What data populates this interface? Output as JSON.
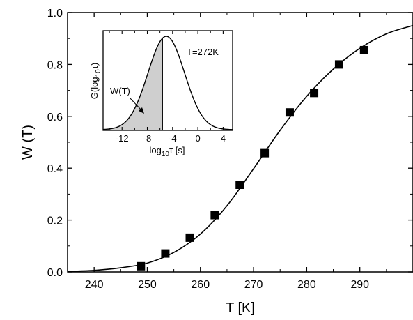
{
  "chart_data": [
    {
      "type": "scatter",
      "xlabel": "T [K]",
      "ylabel": "W (T)",
      "xlim": [
        235,
        300
      ],
      "ylim": [
        0,
        1.0
      ],
      "xticks": [
        240,
        250,
        260,
        270,
        280,
        290
      ],
      "yticks": [
        0.0,
        0.2,
        0.4,
        0.6,
        0.8,
        1.0
      ],
      "xtick_labels": [
        "240",
        "250",
        "260",
        "270",
        "280",
        "290"
      ],
      "ytick_labels": [
        "0.0",
        "0.2",
        "0.4",
        "0.6",
        "0.8",
        "1.0"
      ],
      "grid": false,
      "series": [
        {
          "marker": "square",
          "x": [
            248.8,
            253.4,
            258.0,
            262.7,
            267.4,
            272.1,
            276.8,
            281.4,
            286.1,
            290.8
          ],
          "y": [
            0.022,
            0.071,
            0.132,
            0.219,
            0.336,
            0.458,
            0.615,
            0.69,
            0.8,
            0.855
          ]
        },
        {
          "line": "fit-curve",
          "x": [
            235,
            240,
            245,
            250,
            255,
            260,
            265,
            270,
            275,
            280,
            285,
            290,
            295,
            300
          ],
          "y": [
            0.002,
            0.006,
            0.016,
            0.034,
            0.075,
            0.146,
            0.255,
            0.398,
            0.546,
            0.677,
            0.782,
            0.862,
            0.918,
            0.95
          ]
        }
      ]
    },
    {
      "type": "area",
      "inset": true,
      "annotation": "T=272K",
      "shaded_label": "W(T)",
      "xlabel_main": "log",
      "xlabel_sub": "10",
      "xlabel_rest": "τ [s]",
      "ylabel_main": "G(log",
      "ylabel_sub": "10",
      "ylabel_rest": "τ)",
      "xlim": [
        -15,
        5.5
      ],
      "xticks": [
        -12,
        -8,
        -4,
        0,
        4
      ],
      "xtick_labels": [
        "-12",
        "-8",
        "-4",
        "0",
        "4"
      ],
      "peak_log_tau": -5.0,
      "width_sigma": 2.9,
      "shaded_below_log_tau": -5.6
    }
  ]
}
